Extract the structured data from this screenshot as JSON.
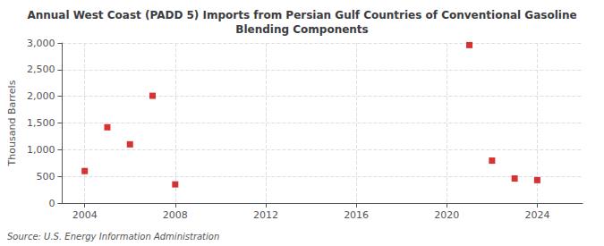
{
  "chart_data": {
    "type": "scatter",
    "title": "Annual West Coast (PADD 5) Imports from Persian Gulf Countries of Conventional Gasoline\nBlending Components",
    "ylabel": "Thousand Barrels",
    "source": "Source: U.S. Energy Information Administration",
    "x": [
      2004,
      2005,
      2006,
      2007,
      2008,
      2021,
      2022,
      2023,
      2024
    ],
    "values": [
      600,
      1420,
      1100,
      2010,
      350,
      2960,
      795,
      460,
      430
    ],
    "color": "#cc0000",
    "marker": "square",
    "xlim": [
      2003,
      2026
    ],
    "xticks": [
      2004,
      2008,
      2012,
      2016,
      2020,
      2024
    ],
    "ylim": [
      0,
      3000
    ],
    "yticks": [
      0,
      500,
      {
        "value": 1000,
        "label": "1,000"
      },
      {
        "value": 1500,
        "label": "1,500"
      },
      {
        "value": 2000,
        "label": "2,000"
      },
      {
        "value": 2500,
        "label": "2,500"
      },
      {
        "value": 3000,
        "label": "3,000"
      }
    ],
    "grid": true
  }
}
